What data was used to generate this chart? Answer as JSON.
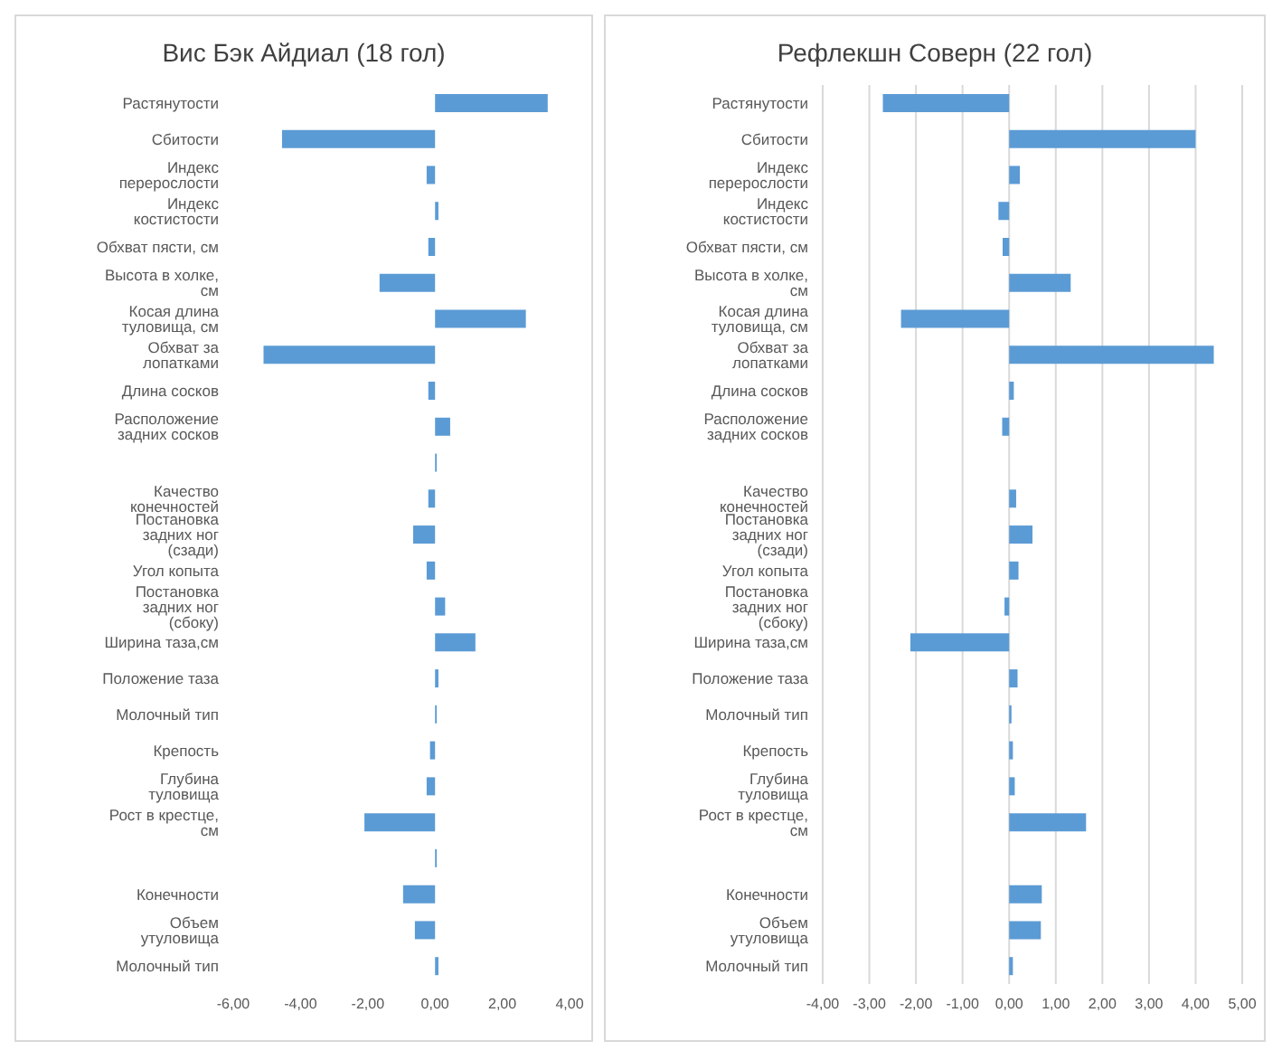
{
  "chart_data": [
    {
      "type": "bar",
      "orientation": "horizontal",
      "title": "Вис Бэк Айдиал (18 гол)",
      "color": "#5b9bd5",
      "grid": false,
      "categories": [
        "Растянутости",
        "Сбитости",
        "Индекс перерослости",
        "Индекс костистости",
        "Обхват пясти, см",
        "Высота в холке, см",
        "Косая длина туловища, см",
        "Обхват за лопатками",
        "Длина сосков",
        "Расположение задних сосков",
        null,
        "Качество конечностей",
        "Постановка задних ног (сзади)",
        "Угол копыта",
        "Постановка задних ног (сбоку)",
        "Ширина таза,см",
        "Положение таза",
        "Молочный тип",
        "Крепость",
        "Глубина туловища",
        "Рост в крестце, см",
        null,
        "Конечности",
        "Объем утуловища",
        "Молочный тип"
      ],
      "values": [
        3.35,
        -4.55,
        -0.25,
        0.1,
        -0.2,
        -1.65,
        2.7,
        -5.1,
        -0.2,
        0.45,
        0.05,
        -0.2,
        -0.65,
        -0.25,
        0.3,
        1.2,
        0.1,
        0.05,
        -0.15,
        -0.25,
        -2.1,
        0.05,
        -0.95,
        -0.6,
        0.1
      ],
      "xlim": [
        -6,
        4
      ],
      "xticks": [
        {
          "value": -6,
          "label": "-6,00"
        },
        {
          "value": -4,
          "label": "-4,00"
        },
        {
          "value": -2,
          "label": "-2,00"
        },
        {
          "value": 0,
          "label": "0,00"
        },
        {
          "value": 2,
          "label": "2,00"
        },
        {
          "value": 4,
          "label": "4,00"
        }
      ]
    },
    {
      "type": "bar",
      "orientation": "horizontal",
      "title": "Рефлекшн Соверн (22 гол)",
      "color": "#5b9bd5",
      "grid": "x",
      "categories": [
        "Растянутости",
        "Сбитости",
        "Индекс перерослости",
        "Индекс костистости",
        "Обхват пясти, см",
        "Высота в холке, см",
        "Косая длина туловища, см",
        "Обхват за лопатками",
        "Длина сосков",
        "Расположение задних сосков",
        null,
        "Качество конечностей",
        "Постановка задних ног (сзади)",
        "Угол копыта",
        "Постановка задних ног (сбоку)",
        "Ширина таза,см",
        "Положение таза",
        "Молочный тип",
        "Крепость",
        "Глубина туловища",
        "Рост в крестце, см",
        null,
        "Конечности",
        "Объем утуловища",
        "Молочный тип"
      ],
      "values": [
        -2.71,
        4.0,
        0.23,
        -0.23,
        -0.14,
        1.32,
        -2.32,
        4.39,
        0.1,
        -0.15,
        null,
        0.15,
        0.5,
        0.2,
        -0.1,
        -2.12,
        0.18,
        0.05,
        0.08,
        0.12,
        1.65,
        null,
        0.7,
        0.68,
        0.08
      ],
      "xlim": [
        -4,
        5
      ],
      "xticks": [
        {
          "value": -4,
          "label": "-4,00"
        },
        {
          "value": -3,
          "label": "-3,00"
        },
        {
          "value": -2,
          "label": "-2,00"
        },
        {
          "value": -1,
          "label": "-1,00"
        },
        {
          "value": 0,
          "label": "0,00"
        },
        {
          "value": 1,
          "label": "1,00"
        },
        {
          "value": 2,
          "label": "2,00"
        },
        {
          "value": 3,
          "label": "3,00"
        },
        {
          "value": 4,
          "label": "4,00"
        },
        {
          "value": 5,
          "label": "5,00"
        }
      ]
    }
  ]
}
